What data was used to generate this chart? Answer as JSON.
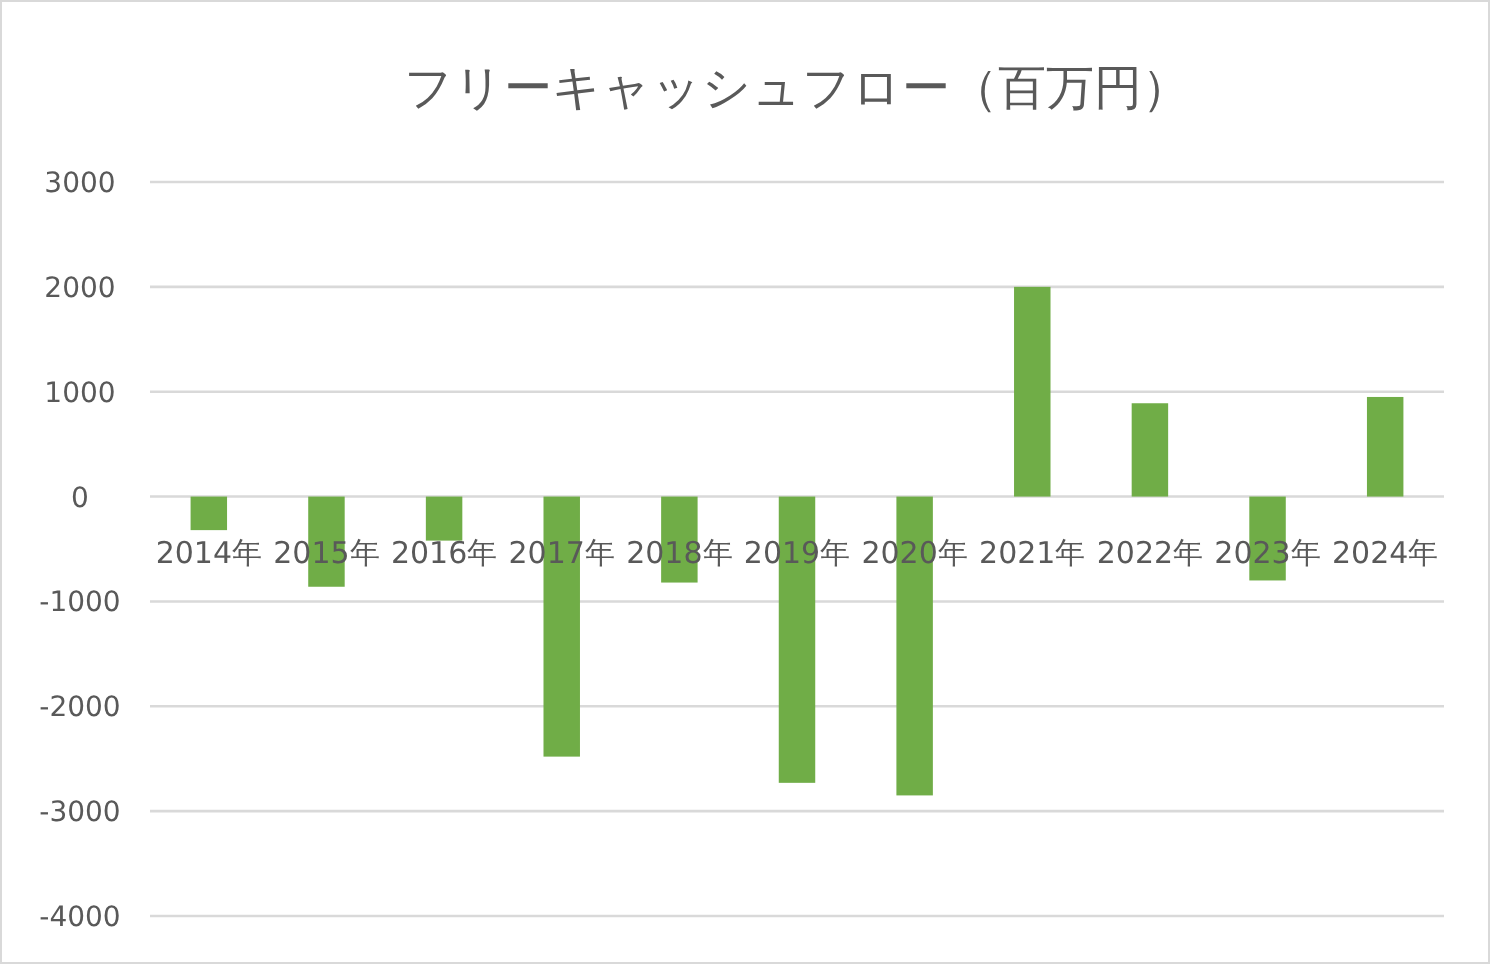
{
  "chart_data": {
    "type": "bar",
    "title": "フリーキャッシュフロー（百万円）",
    "categories": [
      "2014年",
      "2015年",
      "2016年",
      "2017年",
      "2018年",
      "2019年",
      "2020年",
      "2021年",
      "2022年",
      "2023年",
      "2024年"
    ],
    "values": [
      -320,
      -860,
      -420,
      -2480,
      -820,
      -2730,
      -2850,
      2000,
      890,
      -800,
      950
    ],
    "color": "#70ad47",
    "ylim": [
      -4000,
      3000
    ],
    "yticks": [
      -4000,
      -3000,
      -2000,
      -1000,
      0,
      1000,
      2000,
      3000
    ],
    "grid": "y"
  }
}
